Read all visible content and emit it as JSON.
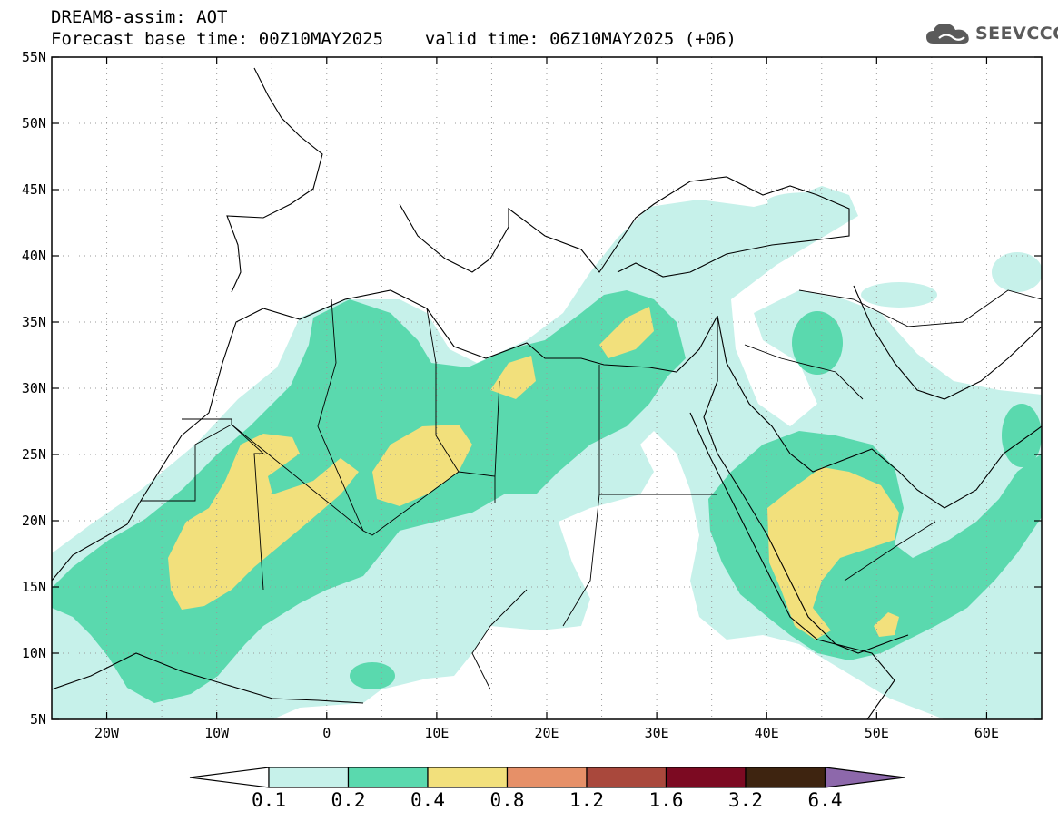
{
  "header": {
    "title_line1": "DREAM8-assim: AOT",
    "base_time": "Forecast base time: 00Z10MAY2025",
    "valid_time": "valid time: 06Z10MAY2025 (+06)",
    "logo_text": "SEEVCCC",
    "logo_icon": "cloud-icon"
  },
  "map": {
    "lon_range": [
      -25,
      65
    ],
    "lat_range": [
      5,
      55
    ],
    "lat_labels": [
      "55N",
      "50N",
      "45N",
      "40N",
      "35N",
      "30N",
      "25N",
      "20N",
      "15N",
      "10N",
      "5N"
    ],
    "lon_labels": [
      "20W",
      "10W",
      "0",
      "10E",
      "20E",
      "30E",
      "40E",
      "50E",
      "60E"
    ],
    "colors": {
      "coast": "#000000",
      "grid": "#9a9a9a"
    }
  },
  "colorbar": {
    "labels": [
      "0.1",
      "0.2",
      "0.4",
      "0.8",
      "1.2",
      "1.6",
      "3.2",
      "6.4"
    ],
    "colors": [
      "#ffffff",
      "#c6f1ea",
      "#5ad9ae",
      "#f2e07c",
      "#e69068",
      "#a9483c",
      "#7c0a22",
      "#3e2410",
      "#8d68ab"
    ]
  }
}
